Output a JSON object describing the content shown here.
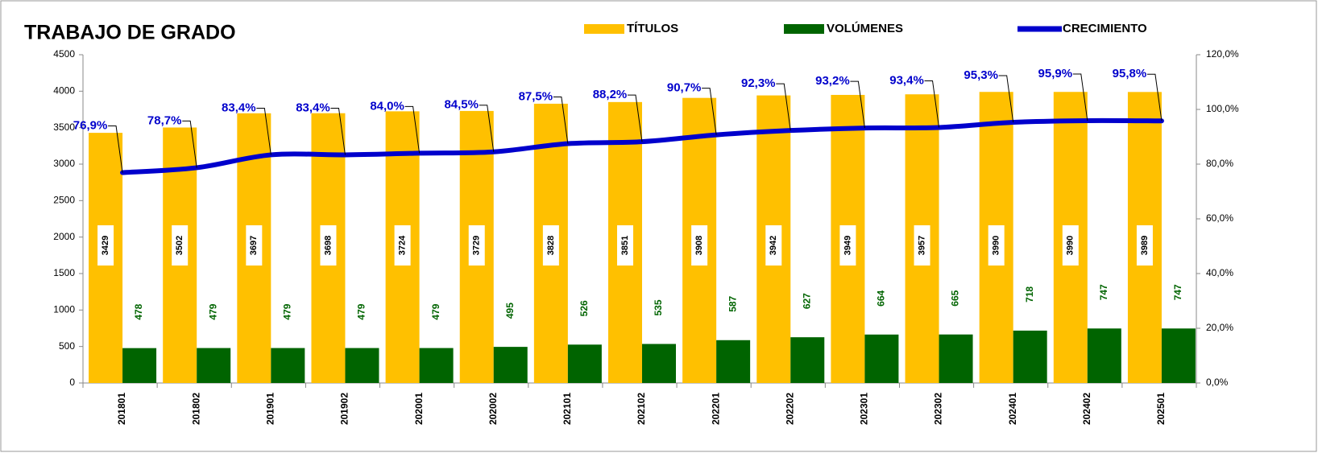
{
  "chart_data": {
    "type": "bar_line",
    "title": "TRABAJO DE GRADO",
    "categories": [
      "201801",
      "201802",
      "201901",
      "201902",
      "202001",
      "202002",
      "202101",
      "202102",
      "202201",
      "202202",
      "202301",
      "202302",
      "202401",
      "202402",
      "202501"
    ],
    "series": [
      {
        "name": "TÍTULOS",
        "color": "#FFC000",
        "type": "bar",
        "values": [
          3429,
          3502,
          3697,
          3698,
          3724,
          3729,
          3828,
          3851,
          3908,
          3942,
          3949,
          3957,
          3990,
          3990,
          3989
        ]
      },
      {
        "name": "VOLÚMENES",
        "color": "#006400",
        "type": "bar",
        "values": [
          478,
          479,
          479,
          479,
          479,
          495,
          526,
          535,
          587,
          627,
          664,
          665,
          718,
          747,
          747
        ]
      },
      {
        "name": "CRECIMIENTO",
        "color": "#0000CC",
        "type": "line",
        "axis": "y2",
        "values": [
          76.9,
          78.7,
          83.4,
          83.4,
          84.0,
          84.5,
          87.5,
          88.2,
          90.7,
          92.3,
          93.2,
          93.4,
          95.3,
          95.9,
          95.8
        ],
        "value_labels": [
          "76,9%",
          "78,7%",
          "83,4%",
          "83,4%",
          "84,0%",
          "84,5%",
          "87,5%",
          "88,2%",
          "90,7%",
          "92,3%",
          "93,2%",
          "93,4%",
          "95,3%",
          "95,9%",
          "95,8%"
        ]
      }
    ],
    "ylim": [
      0,
      4500
    ],
    "yticks": [
      0,
      500,
      1000,
      1500,
      2000,
      2500,
      3000,
      3500,
      4000,
      4500
    ],
    "y2lim": [
      0,
      120
    ],
    "y2ticks": [
      {
        "value": 0,
        "label": "0,0%"
      },
      {
        "value": 20,
        "label": "20,0%"
      },
      {
        "value": 40,
        "label": "40,0%"
      },
      {
        "value": 60,
        "label": "60,0%"
      },
      {
        "value": 80,
        "label": "80,0%"
      },
      {
        "value": 100,
        "label": "100,0%"
      },
      {
        "value": 120,
        "label": "120,0%"
      }
    ]
  }
}
